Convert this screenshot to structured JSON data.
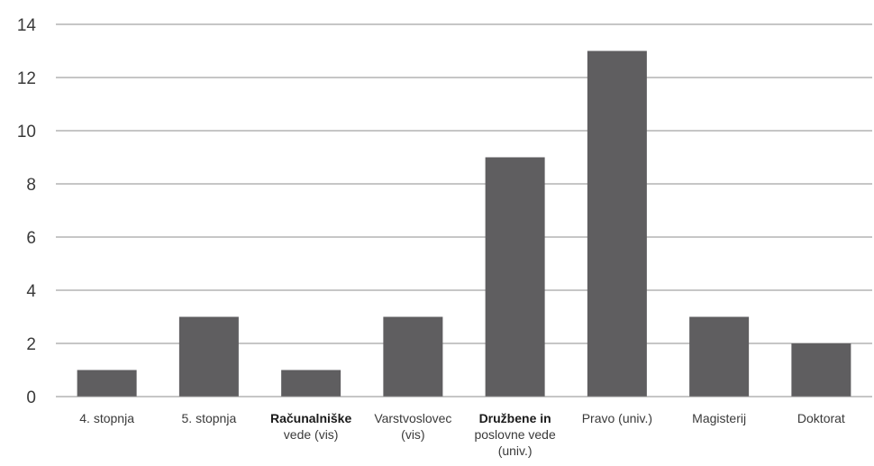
{
  "chart_data": {
    "type": "bar",
    "categories": [
      "4. stopnja",
      "5. stopnja",
      "Računalniške vede (vis)",
      "Varstvoslovec (vis)",
      "Družbene in poslovne vede (univ.)",
      "Pravo (univ.)",
      "Magisterij",
      "Doktorat"
    ],
    "category_label_lines": [
      [
        "4. stopnja"
      ],
      [
        "5. stopnja"
      ],
      [
        "Računalniške",
        "vede (vis)"
      ],
      [
        "Varstvoslovec",
        "(vis)"
      ],
      [
        "Družbene in",
        "poslovne vede",
        "(univ.)"
      ],
      [
        "Pravo (univ.)"
      ],
      [
        "Magisterij"
      ],
      [
        "Doktorat"
      ]
    ],
    "bold_first_line": [
      false,
      false,
      true,
      false,
      true,
      false,
      false,
      false
    ],
    "values": [
      1,
      3,
      1,
      3,
      9,
      13,
      3,
      2
    ],
    "yticks": [
      0,
      2,
      4,
      6,
      8,
      10,
      12,
      14
    ],
    "ylim": [
      0,
      14
    ],
    "grid": true,
    "legend": "none",
    "bar_color": "#5f5e60",
    "grid_color": "#8c8c8c"
  }
}
